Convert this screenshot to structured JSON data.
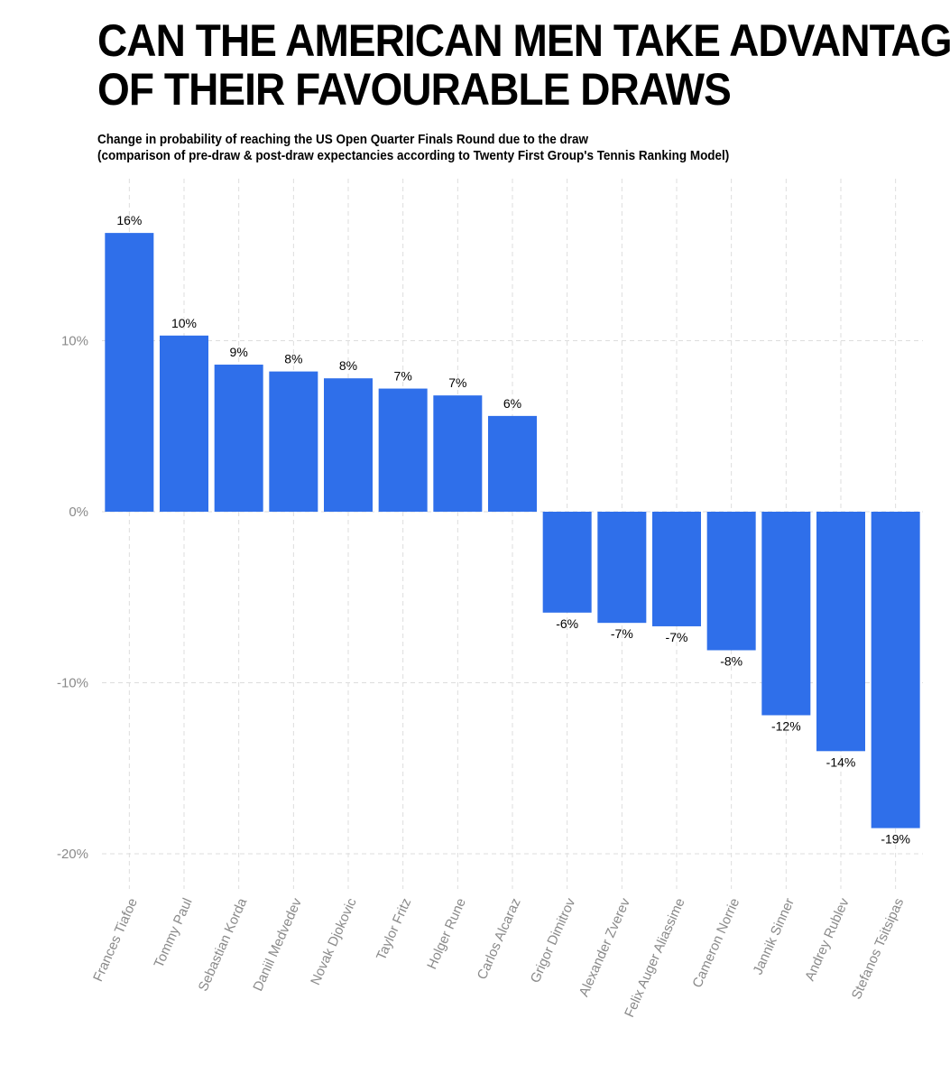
{
  "title_line1": "CAN THE AMERICAN MEN TAKE ADVANTAGE",
  "title_line2": "OF THEIR FAVOURABLE DRAWS",
  "subtitle_line1": "Change in probability of reaching the US Open Quarter Finals Round due to the draw",
  "subtitle_line2": "(comparison of pre-draw & post-draw expectancies according to Twenty First Group's Tennis Ranking Model)",
  "colors": {
    "bar": "#2f6fea",
    "grid": "#dddddd",
    "tick": "#8a8a8a"
  },
  "chart_data": {
    "type": "bar",
    "title": "CAN THE AMERICAN MEN TAKE ADVANTAGE OF THEIR FAVOURABLE DRAWS",
    "xlabel": "",
    "ylabel": "",
    "ylim": [
      -22,
      19.5
    ],
    "yticks": [
      -20,
      -10,
      0,
      10
    ],
    "ytick_labels": [
      "-20%",
      "-10%",
      "0%",
      "10%"
    ],
    "grid": true,
    "categories": [
      "Frances Tiafoe",
      "Tommy Paul",
      "Sebastian Korda",
      "Daniil Medvedev",
      "Novak Djokovic",
      "Taylor Fritz",
      "Holger Rune",
      "Carlos Alcaraz",
      "Grigor Dimitrov",
      "Alexander Zverev",
      "Felix Auger Aliassime",
      "Cameron Norrie",
      "Jannik Sinner",
      "Andrey Rublev",
      "Stefanos Tsitsipas"
    ],
    "values": [
      16.3,
      10.3,
      8.6,
      8.2,
      7.8,
      7.2,
      6.8,
      5.6,
      -5.9,
      -6.5,
      -6.7,
      -8.1,
      -11.9,
      -14.0,
      -18.5
    ],
    "data_labels": [
      "16%",
      "10%",
      "9%",
      "8%",
      "8%",
      "7%",
      "7%",
      "6%",
      "-6%",
      "-7%",
      "-7%",
      "-8%",
      "-12%",
      "-14%",
      "-19%"
    ]
  }
}
